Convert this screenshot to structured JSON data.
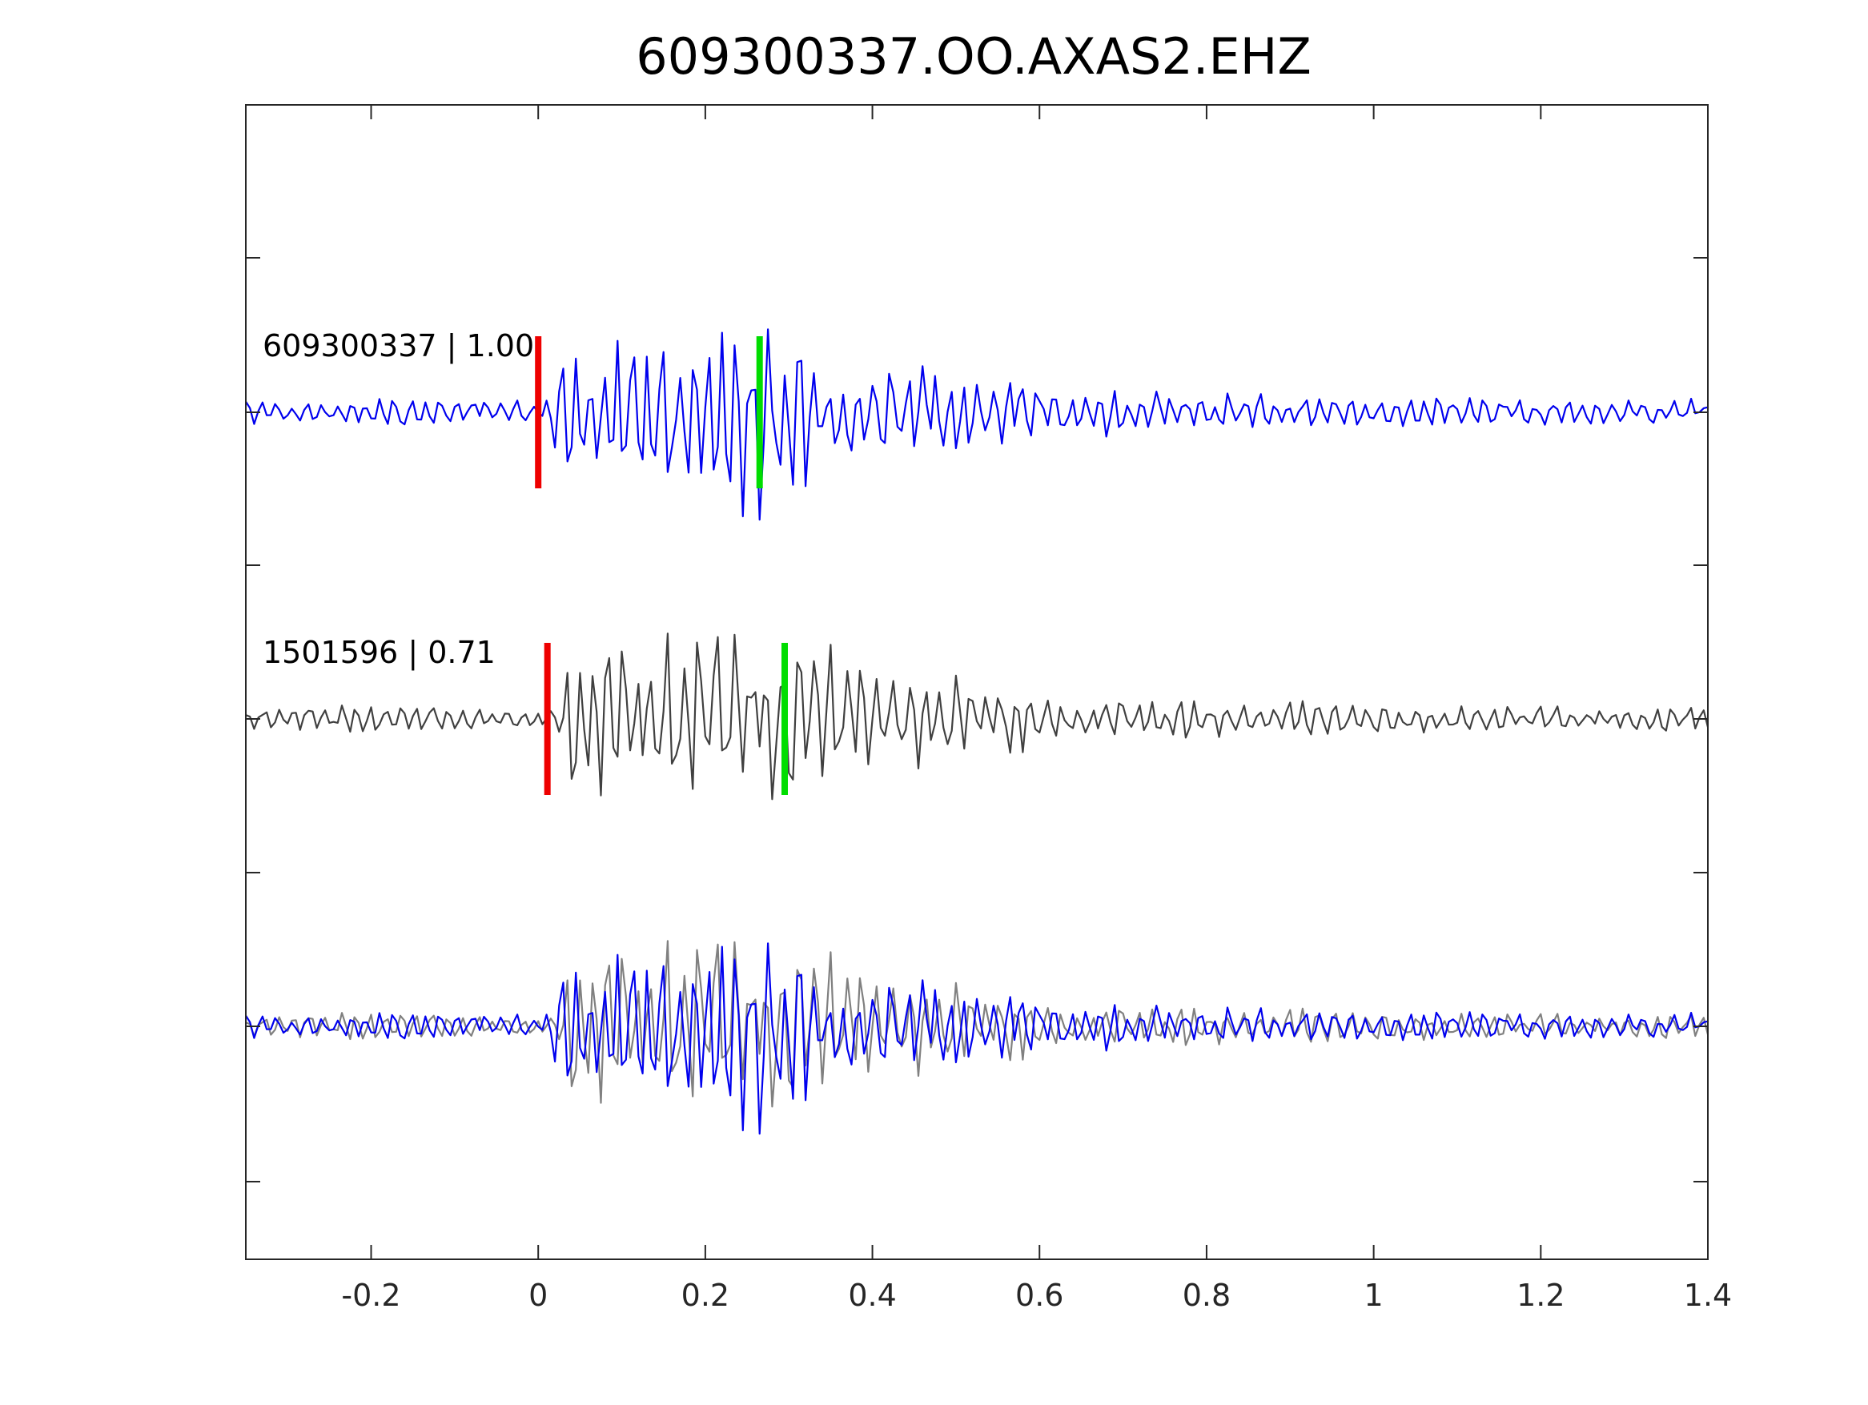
{
  "chart_data": {
    "type": "line",
    "title": "609300337.OO.AXAS2.EHZ",
    "xlabel": "",
    "ylabel": "",
    "xlim": [
      -0.35,
      1.4
    ],
    "x_ticks": [
      -0.2,
      0,
      0.2,
      0.4,
      0.6,
      0.8,
      1,
      1.2,
      1.4
    ],
    "x_tick_labels": [
      "-0.2",
      "0",
      "0.2",
      "0.4",
      "0.6",
      "0.8",
      "1",
      "1.2",
      "1.4"
    ],
    "y_tick_labels_shown": false,
    "grid": false,
    "legend": "none",
    "sample_interval_s": 0.005,
    "colors": {
      "template_trace": "#0000ee",
      "neighbor_trace": "#404040",
      "neighbor_overlay": "#808080",
      "p_pick": "#ee0000",
      "s_pick": "#00dd00"
    },
    "traces": [
      {
        "label": "609300337 | 1.00",
        "event_id": "609300337",
        "correlation": "1.00",
        "color": "#0000ee",
        "p_pick_time": 0.0,
        "s_pick_time": 0.265
      },
      {
        "label": "1501596 | 0.71",
        "event_id": "1501596",
        "correlation": "0.71",
        "color": "#404040",
        "p_pick_time": 0.011,
        "s_pick_time": 0.295
      }
    ],
    "overlay": {
      "series": [
        "609300337",
        "1501596"
      ]
    }
  }
}
